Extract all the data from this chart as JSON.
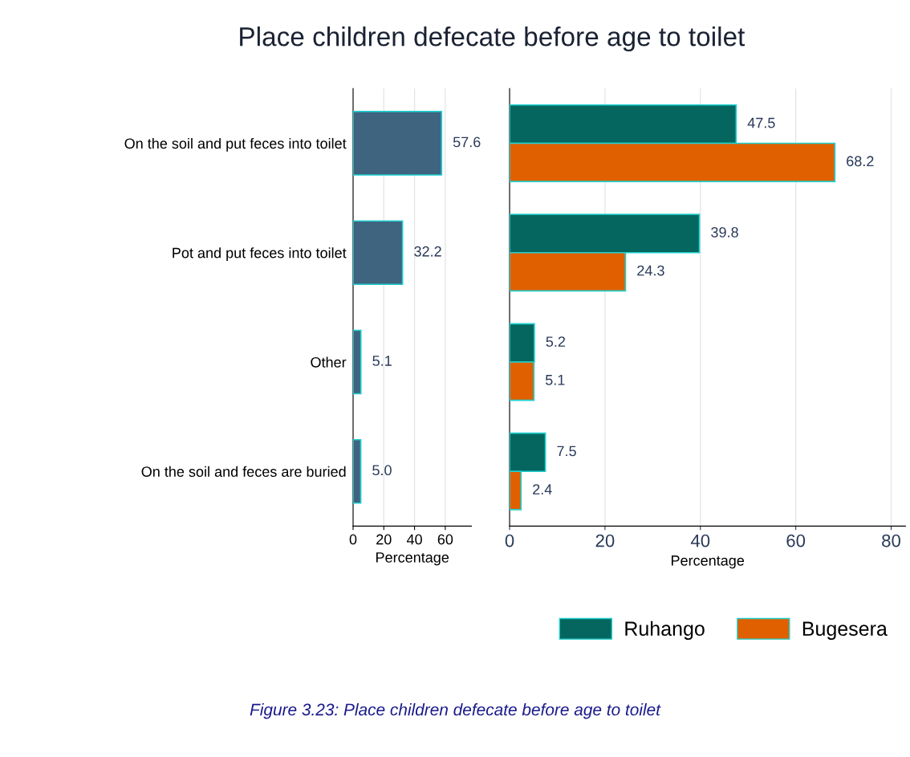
{
  "chart_data": [
    {
      "type": "bar",
      "orientation": "horizontal",
      "title": "Place children defecate before age to toilet",
      "xlabel": "Percentage",
      "categories": [
        "On the soil and put feces into toilet",
        "Pot and put feces into toilet",
        "Other",
        "On the soil and feces are buried"
      ],
      "series": [
        {
          "color": "#3e6480",
          "values": [
            57.6,
            32.2,
            5.1,
            5.0
          ],
          "value_labels": [
            "57.6",
            "32.2",
            "5.1",
            "5.0"
          ]
        }
      ],
      "xlim": [
        0,
        77
      ],
      "xticks": [
        0,
        20,
        40,
        60
      ],
      "grid": "x",
      "legend": false,
      "annotations": [
        "Figure 3.23: Place children defecate before age to toilet"
      ]
    },
    {
      "type": "bar",
      "orientation": "horizontal",
      "xlabel": "Percentage",
      "categories": [
        null,
        null,
        null,
        null
      ],
      "series": [
        {
          "name": "Ruhango",
          "color": "#04665e",
          "values": [
            47.5,
            39.8,
            5.2,
            7.5
          ],
          "value_labels": [
            "47.5",
            "39.8",
            "5.2",
            "7.5"
          ]
        },
        {
          "name": "Bugesera",
          "color": "#e06000",
          "values": [
            68.2,
            24.3,
            5.1,
            2.4
          ],
          "value_labels": [
            "68.2",
            "24.3",
            "5.1",
            "2.4"
          ]
        }
      ],
      "xlim": [
        0,
        83
      ],
      "xticks": [
        0,
        20,
        40,
        60,
        80
      ],
      "grid": "x",
      "legend": "bottom right",
      "tick_labels": "x"
    }
  ]
}
